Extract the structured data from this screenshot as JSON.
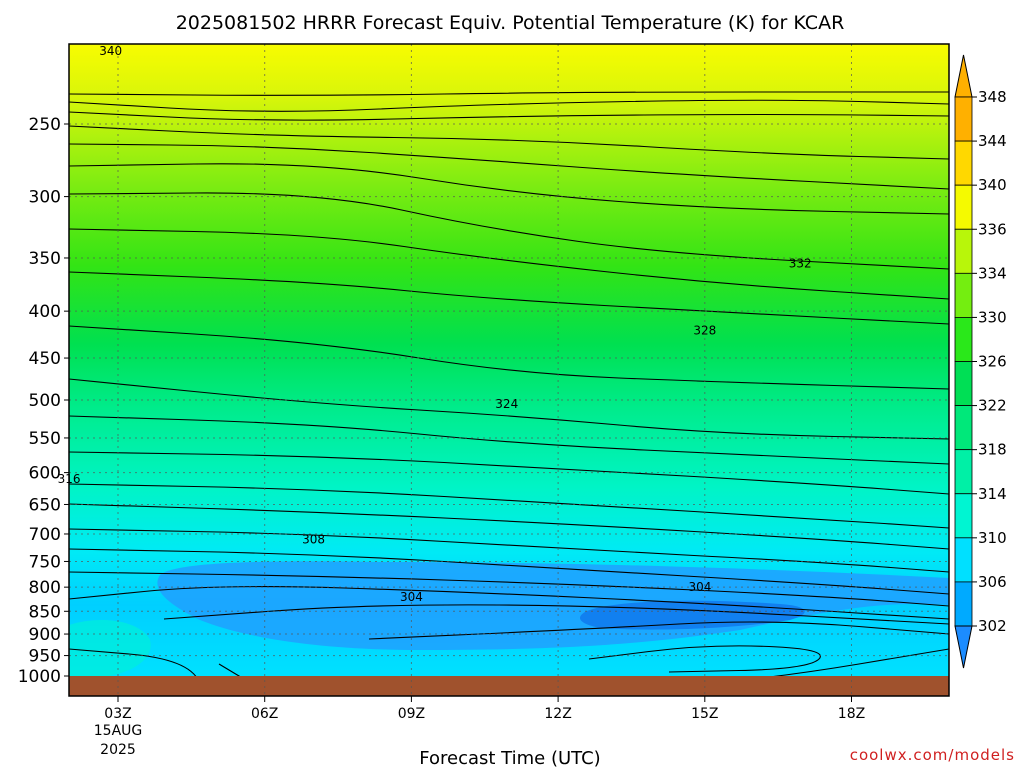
{
  "chart_data": {
    "type": "heatmap",
    "title": "2025081502 HRRR Forecast Equiv. Potential Temperature (K) for KCAR",
    "xlabel": "Forecast Time (UTC)",
    "ylabel": "",
    "x_ticks": [
      "03Z",
      "06Z",
      "09Z",
      "12Z",
      "15Z",
      "18Z"
    ],
    "x_sublabels": [
      "15AUG",
      "2025"
    ],
    "y_ticks": [
      250,
      300,
      350,
      400,
      450,
      500,
      550,
      600,
      650,
      700,
      750,
      800,
      850,
      900,
      950,
      1000
    ],
    "y_scale": "pressure (hPa), decreasing upward",
    "grid": true,
    "contour_interval": 2,
    "colorbar_levels": [
      302,
      306,
      310,
      314,
      318,
      322,
      326,
      330,
      334,
      336,
      340,
      344,
      348
    ],
    "colors": {
      "302": "#1c8cff",
      "306": "#00aaff",
      "310": "#00e0ff",
      "314": "#00f5d2",
      "318": "#00f0a6",
      "322": "#00e87a",
      "326": "#00df55",
      "330": "#2ae81a",
      "334": "#74ee10",
      "336": "#b8f60a",
      "340": "#f5fa00",
      "344": "#ffd800",
      "348": "#ffb000"
    },
    "contour_labels": [
      {
        "value": "340",
        "x": 2.85,
        "p": 208
      },
      {
        "value": "332",
        "x": 16.95,
        "p": 355
      },
      {
        "value": "328",
        "x": 15.0,
        "p": 420
      },
      {
        "value": "324",
        "x": 10.95,
        "p": 505
      },
      {
        "value": "316",
        "x": 2.0,
        "p": 610
      },
      {
        "value": "308",
        "x": 7.0,
        "p": 710
      },
      {
        "value": "304",
        "x": 9.0,
        "p": 820
      },
      {
        "value": "304",
        "x": 14.9,
        "p": 800
      }
    ],
    "annotations": [
      "coolwx.com/models"
    ]
  }
}
